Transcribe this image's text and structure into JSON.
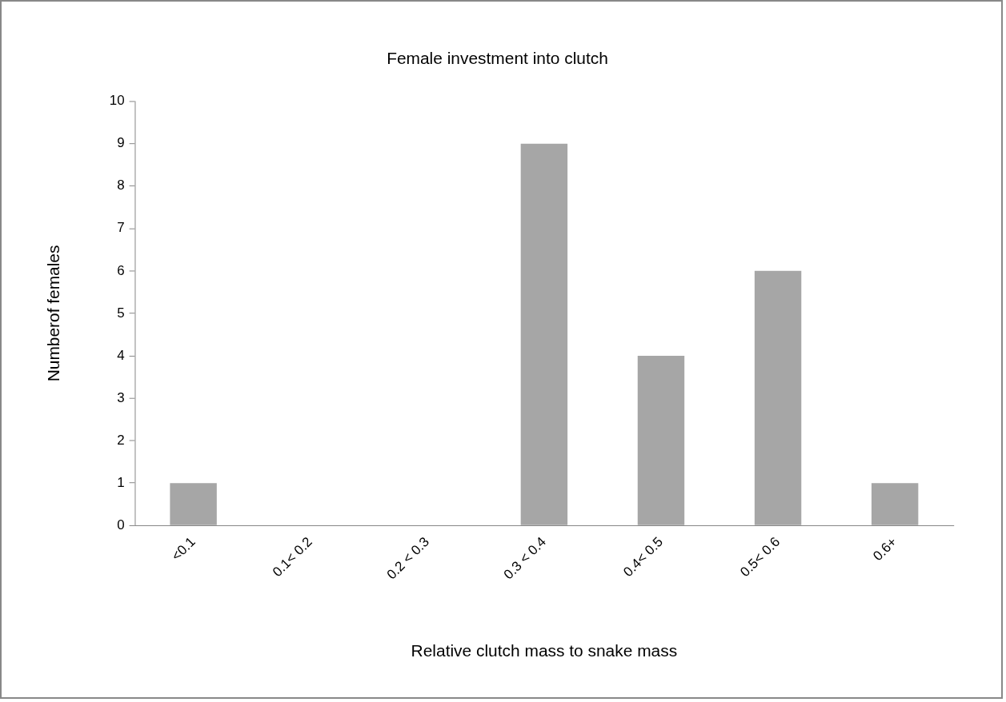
{
  "chart_data": {
    "type": "bar",
    "title": "Female investment into clutch",
    "xlabel": "Relative clutch mass to snake mass",
    "ylabel": "Numberof females",
    "categories": [
      "<0.1",
      "0.1< 0.2",
      "0.2 < 0.3",
      "0.3 < 0.4",
      "0.4< 0.5",
      "0.5< 0.6",
      "0.6+"
    ],
    "values": [
      1,
      0,
      0,
      9,
      4,
      6,
      1
    ],
    "color": "#a6a6a6",
    "ylim": [
      0,
      10
    ],
    "yticks": [
      0,
      1,
      2,
      3,
      4,
      5,
      6,
      7,
      8,
      9,
      10
    ],
    "grid": false,
    "legend": false
  }
}
